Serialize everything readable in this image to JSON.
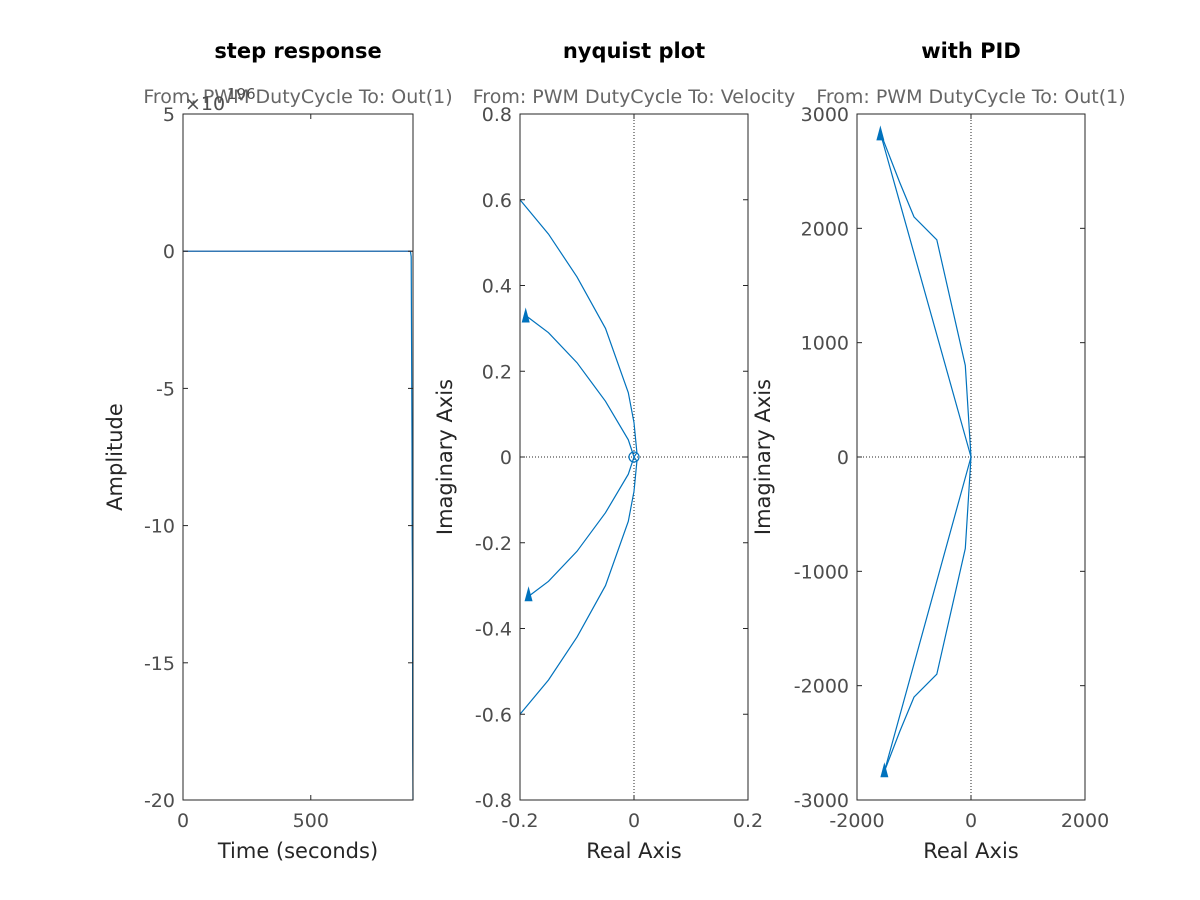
{
  "colors": {
    "series": "#0072bd",
    "reference": "#a2142f",
    "axis": "#262626",
    "tick_text": "#4d4d4d",
    "subtitle_text": "#666666"
  },
  "chart_data": [
    {
      "type": "line",
      "title": "step response",
      "subtitle": "From: PWM DutyCycle  To: Out(1)",
      "xlabel": "Time (seconds)",
      "ylabel": "Amplitude",
      "exponent_label": "×10",
      "exponent_power": "196",
      "xlim": [
        0,
        900
      ],
      "ylim": [
        -20,
        5
      ],
      "xticks": [
        0,
        500
      ],
      "xtick_labels": [
        "0",
        "500"
      ],
      "yticks": [
        5,
        0,
        -5,
        -10,
        -15,
        -20
      ],
      "ytick_labels": [
        "5",
        "0",
        "-5",
        "-10",
        "-15",
        "-20"
      ],
      "grid": false,
      "reference_line": {
        "y": 0,
        "x": [
          0,
          900
        ]
      },
      "series": [
        {
          "x": [
            0,
            880,
            890,
            893,
            895,
            896,
            897,
            898,
            899,
            900
          ],
          "y": [
            0,
            0,
            0,
            -0.2,
            -4.5,
            -7.0,
            -10.5,
            -12.0,
            -18.0,
            -20.0
          ]
        }
      ]
    },
    {
      "type": "line",
      "title": "nyquist plot",
      "subtitle": "From: PWM DutyCycle  To: Velocity",
      "xlabel": "Real Axis",
      "ylabel": "Imaginary Axis",
      "xlim": [
        -0.2,
        0.2
      ],
      "ylim": [
        -0.8,
        0.8
      ],
      "xticks": [
        -0.2,
        0,
        0.2
      ],
      "xtick_labels": [
        "-0.2",
        "0",
        "0.2"
      ],
      "yticks": [
        0.8,
        0.6,
        0.4,
        0.2,
        0,
        -0.2,
        -0.4,
        -0.6,
        -0.8
      ],
      "ytick_labels": [
        "0.8",
        "0.6",
        "0.4",
        "0.2",
        "0",
        "-0.2",
        "-0.4",
        "-0.6",
        "-0.8"
      ],
      "grid": false,
      "zero_lines": true,
      "series": [
        {
          "x": [
            -0.2,
            -0.15,
            -0.1,
            -0.05,
            -0.01,
            0.0,
            0.005,
            0.0
          ],
          "y": [
            0.6,
            0.52,
            0.42,
            0.3,
            0.15,
            0.08,
            0.01,
            0.0
          ]
        },
        {
          "x": [
            0.0,
            0.005,
            0.0,
            -0.01,
            -0.05,
            -0.1,
            -0.15,
            -0.2
          ],
          "y": [
            0.0,
            -0.01,
            -0.08,
            -0.15,
            -0.3,
            -0.42,
            -0.52,
            -0.6
          ]
        },
        {
          "x": [
            -0.19,
            -0.15,
            -0.1,
            -0.05,
            -0.01,
            0.0
          ],
          "y": [
            0.33,
            0.29,
            0.22,
            0.13,
            0.04,
            0.0
          ]
        },
        {
          "x": [
            0.0,
            -0.01,
            -0.05,
            -0.1,
            -0.15,
            -0.19
          ],
          "y": [
            0.0,
            -0.04,
            -0.13,
            -0.22,
            -0.29,
            -0.33
          ]
        }
      ],
      "arrows": [
        {
          "x": -0.19,
          "y": 0.33
        },
        {
          "x": -0.185,
          "y": -0.32
        }
      ],
      "circle": {
        "x": 0.0,
        "y": 0.0
      }
    },
    {
      "type": "line",
      "title": "with PID",
      "subtitle": "From: PWM DutyCycle  To: Out(1)",
      "xlabel": "Real Axis",
      "ylabel": "Imaginary Axis",
      "xlim": [
        -2000,
        2000
      ],
      "ylim": [
        -3000,
        3000
      ],
      "xticks": [
        -2000,
        0,
        2000
      ],
      "xtick_labels": [
        "-2000",
        "0",
        "2000"
      ],
      "yticks": [
        3000,
        2000,
        1000,
        0,
        -1000,
        -2000,
        -3000
      ],
      "ytick_labels": [
        "3000",
        "2000",
        "1000",
        "0",
        "-1000",
        "-2000",
        "-3000"
      ],
      "grid": false,
      "zero_lines": true,
      "series": [
        {
          "x": [
            -1600,
            -1250,
            -1000,
            -600,
            -100,
            0
          ],
          "y": [
            2850,
            2400,
            2100,
            1900,
            800,
            0
          ]
        },
        {
          "x": [
            0,
            -100,
            -600,
            -1000,
            -1250,
            -1520
          ],
          "y": [
            0,
            -800,
            -1900,
            -2100,
            -2400,
            -2750
          ]
        },
        {
          "x": [
            -1600,
            0
          ],
          "y": [
            2850,
            0
          ]
        },
        {
          "x": [
            0,
            -1520
          ],
          "y": [
            0,
            -2750
          ]
        }
      ],
      "arrows": [
        {
          "x": -1590,
          "y": 2830
        },
        {
          "x": -1520,
          "y": -2740
        }
      ]
    }
  ]
}
